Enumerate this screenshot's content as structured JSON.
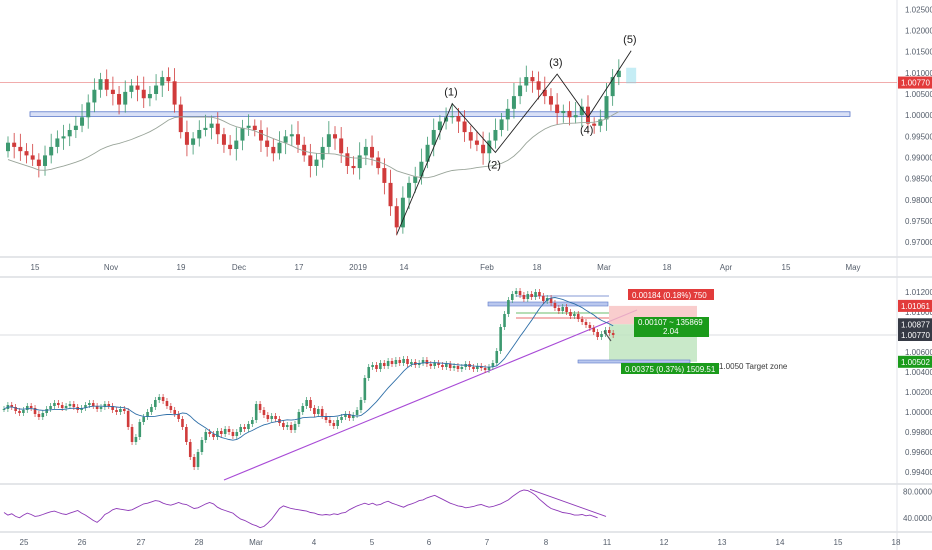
{
  "chart_data": [
    {
      "type": "candlestick",
      "panel": "daily",
      "y_axis_ticks": [
        "1.02500",
        "1.02000",
        "1.01500",
        "1.01000",
        "1.00500",
        "1.00000",
        "0.99500",
        "0.99000",
        "0.98500",
        "0.98000",
        "0.97500",
        "0.97000"
      ],
      "ylim": [
        0.9665,
        1.0272
      ],
      "x_axis_ticks": [
        "15",
        "Nov",
        "19",
        "Dec",
        "17",
        "2019",
        "14",
        "Feb",
        "18",
        "Mar",
        "18",
        "Apr",
        "15",
        "May"
      ],
      "current_price_label": "1.00770",
      "current_price": 1.0077,
      "support_zone": [
        0.9997,
        1.0008
      ],
      "wave_labels": [
        "(1)",
        "(2)",
        "(3)",
        "(4)",
        "(5)"
      ],
      "wave_points": [
        0.9718,
        1.0027,
        0.9912,
        1.0097,
        0.9995,
        1.0152
      ],
      "closes": [
        0.9935,
        0.9925,
        0.9915,
        0.9905,
        0.9895,
        0.988,
        0.9905,
        0.9925,
        0.9945,
        0.995,
        0.9965,
        0.9975,
        0.9995,
        1.003,
        1.006,
        1.0085,
        1.006,
        1.005,
        1.0025,
        1.0055,
        1.007,
        1.006,
        1.004,
        1.005,
        1.007,
        1.009,
        1.008,
        1.0025,
        0.996,
        0.993,
        0.9945,
        0.9965,
        0.997,
        0.998,
        0.9955,
        0.993,
        0.992,
        0.994,
        0.997,
        0.9975,
        0.9965,
        0.994,
        0.9925,
        0.991,
        0.9935,
        0.995,
        0.9955,
        0.993,
        0.9905,
        0.988,
        0.9895,
        0.9925,
        0.9955,
        0.9945,
        0.991,
        0.988,
        0.9875,
        0.9905,
        0.9925,
        0.99,
        0.9875,
        0.984,
        0.9785,
        0.9735,
        0.9805,
        0.984,
        0.9855,
        0.989,
        0.993,
        0.9965,
        0.9985,
        0.9995,
        0.9998,
        0.9985,
        0.996,
        0.994,
        0.993,
        0.991,
        0.994,
        0.9965,
        0.999,
        1.0015,
        1.0045,
        1.007,
        1.009,
        1.008,
        1.006,
        1.0045,
        1.0025,
        1.0005,
        1.001,
        0.9995,
        1.0,
        1.002,
        0.998,
        0.9975,
        0.999,
        1.0045,
        1.009,
        1.0105
      ]
    },
    {
      "type": "candlestick",
      "panel": "intraday",
      "y_axis_ticks": [
        "1.01200",
        "1.01000",
        "1.00800",
        "1.00600",
        "1.00400",
        "1.00200",
        "1.00000",
        "0.99800",
        "0.99600",
        "0.99400"
      ],
      "ylim": [
        0.9928,
        1.0133
      ],
      "x_axis_ticks": [
        "25",
        "26",
        "27",
        "28",
        "Mar",
        "4",
        "5",
        "6",
        "7",
        "8",
        "11",
        "12",
        "13",
        "14",
        "15",
        "18"
      ],
      "price_tags": [
        {
          "label": "1.01061",
          "value": 1.01061,
          "color": "#e23b3b"
        },
        {
          "label": "1.00877",
          "value": 1.00877,
          "color": "#363a45"
        },
        {
          "label": "1.00770",
          "value": 1.0077,
          "color": "#363a45"
        },
        {
          "label": "1.00502",
          "value": 1.00502,
          "color": "#1b9b1b"
        }
      ],
      "stop_box_label": "0.00184 (0.18%) 750",
      "reward_ratio_label": "0.00107 ~ 135869",
      "reward_ratio_value": "2.04",
      "target_box_label": "0.00375 (0.37%) 1509.51",
      "target_note": "1.0050 Target zone",
      "entry": 1.00877,
      "stop": 1.01061,
      "target": 1.00502,
      "closes": [
        1.0003,
        1.0007,
        1.0005,
        1.0001,
        0.9999,
        1.0002,
        1.0006,
        1.0004,
        0.9998,
        0.9995,
        0.9999,
        1.0003,
        1.0006,
        1.0009,
        1.0007,
        1.0004,
        1.0006,
        1.0008,
        1.0005,
        1.0002,
        1.0004,
        1.0007,
        1.0009,
        1.0006,
        1.0003,
        1.0005,
        1.0008,
        1.0006,
        1.0002,
        1.0,
        1.0003,
        1.0001,
        0.9985,
        0.997,
        0.9975,
        0.999,
        0.9995,
        1.0,
        1.0005,
        1.0012,
        1.0015,
        1.0011,
        1.0006,
        1.0002,
        0.9998,
        0.9993,
        0.9985,
        0.997,
        0.9955,
        0.9945,
        0.996,
        0.9972,
        0.998,
        0.9978,
        0.9975,
        0.9981,
        0.9978,
        0.9983,
        0.998,
        0.9976,
        0.998,
        0.9985,
        0.9983,
        0.9988,
        0.9992,
        1.0008,
        1.0002,
        0.9997,
        0.9993,
        0.9996,
        0.9993,
        0.9989,
        0.9985,
        0.9987,
        0.9982,
        0.9988,
        1.0,
        1.0006,
        1.0012,
        1.0004,
        0.9998,
        1.0003,
        0.9996,
        0.9992,
        0.9989,
        0.9986,
        0.9992,
        0.9995,
        0.9998,
        0.9994,
        0.9997,
        1.0002,
        1.0012,
        1.0034,
        1.0045,
        1.0047,
        1.0043,
        1.0049,
        1.0046,
        1.0051,
        1.0048,
        1.0052,
        1.0049,
        1.0053,
        1.0048,
        1.005,
        1.0047,
        1.0049,
        1.0052,
        1.0048,
        1.0046,
        1.0049,
        1.0047,
        1.0045,
        1.0048,
        1.0044,
        1.0046,
        1.0043,
        1.0045,
        1.0048,
        1.0045,
        1.0043,
        1.0046,
        1.0044,
        1.0042,
        1.0045,
        1.0049,
        1.0061,
        1.0085,
        1.0098,
        1.0112,
        1.0118,
        1.0121,
        1.0117,
        1.0113,
        1.0118,
        1.0115,
        1.012,
        1.0116,
        1.0111,
        1.0114,
        1.0109,
        1.0104,
        1.0101,
        1.0105,
        1.01,
        1.0096,
        1.0098,
        1.0093,
        1.009,
        1.0087,
        1.0084,
        1.008,
        1.0075,
        1.0078,
        1.0082,
        1.0079,
        1.0077
      ]
    },
    {
      "type": "line",
      "panel": "oscillator",
      "y_axis_ticks": [
        "80.0000",
        "40.0000"
      ],
      "ylim": [
        20,
        88
      ],
      "values": [
        48,
        44,
        46,
        42,
        40,
        44,
        47,
        45,
        42,
        43,
        45,
        47,
        49,
        50,
        48,
        46,
        45,
        47,
        49,
        51,
        47,
        44,
        40,
        36,
        33,
        38,
        45,
        48,
        52,
        54,
        53,
        52,
        51,
        52,
        55,
        58,
        61,
        62,
        64,
        66,
        65,
        62,
        60,
        59,
        61,
        63,
        61,
        60,
        57,
        54,
        55,
        58,
        61,
        63,
        61,
        56,
        53,
        51,
        49,
        47,
        42,
        38,
        36,
        33,
        30,
        28,
        25,
        27,
        32,
        38,
        46,
        54,
        58,
        56,
        54,
        53,
        52,
        51,
        50,
        48,
        47,
        45,
        44,
        45,
        44,
        46,
        45,
        47,
        48,
        52,
        55,
        58,
        60,
        62,
        60,
        62,
        59,
        60,
        63,
        65,
        62,
        60,
        58,
        56,
        59,
        61,
        63,
        66,
        67,
        70,
        72,
        74,
        71,
        68,
        65,
        62,
        60,
        58,
        57,
        55,
        56,
        57,
        59,
        60,
        58,
        56,
        57,
        59,
        61,
        64,
        67,
        72,
        76,
        80,
        82,
        81,
        78,
        74,
        68,
        63,
        58,
        54,
        52,
        50,
        48,
        47,
        46,
        44,
        44,
        45,
        43,
        44,
        42,
        40
      ]
    }
  ]
}
